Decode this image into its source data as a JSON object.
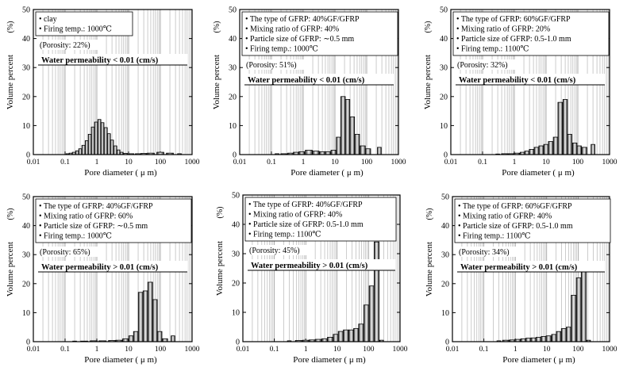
{
  "chart_data": [
    {
      "type": "bar",
      "panel": "top-left",
      "ylabel": "Volume percent",
      "yunit": "(%)",
      "xlabel": "Pore diameter ( μ m)",
      "ylim": [
        0,
        50
      ],
      "yticks": [
        "0",
        "10",
        "20",
        "30",
        "40",
        "50"
      ],
      "xlim": [
        0.01,
        1000
      ],
      "xticks": [
        "0.01",
        "0.1",
        "1",
        "10",
        "100",
        "1000"
      ],
      "legend": [
        "• clay",
        "• Firing temp.: 1000℃"
      ],
      "porosity": "(Porosity: 22%)",
      "permeability": "Water permeability < 0.01 (cm/s)",
      "x": [
        0.12,
        0.15,
        0.19,
        0.24,
        0.3,
        0.38,
        0.48,
        0.6,
        0.75,
        0.95,
        1.2,
        1.5,
        1.9,
        2.4,
        3.0,
        3.8,
        4.8,
        6.0,
        8.0,
        12,
        20,
        30,
        50,
        100,
        200,
        400
      ],
      "values": [
        0.3,
        0.5,
        0.8,
        1.3,
        2.0,
        3.2,
        4.8,
        7.0,
        9.5,
        11.2,
        12.1,
        11.0,
        9.3,
        7.2,
        5.0,
        3.0,
        1.6,
        0.8,
        0.4,
        0.3,
        0.3,
        0.4,
        0.5,
        0.8,
        0.5,
        0.3
      ]
    },
    {
      "type": "bar",
      "panel": "top-middle",
      "ylabel": "Volume percent",
      "yunit": "(%)",
      "xlabel": "Pore diameter ( μ m)",
      "ylim": [
        0,
        50
      ],
      "yticks": [
        "0",
        "10",
        "20",
        "30",
        "40",
        "50"
      ],
      "xlim": [
        0.01,
        1000
      ],
      "xticks": [
        "0.01",
        "0.1",
        "1",
        "10",
        "100",
        "1000"
      ],
      "legend": [
        "• The type of GFRP: 40%GF/GFRP",
        "• Mixing ratio of GFRP: 40%",
        "• Particle size of GFRP: ∼0.5 mm",
        "• Firing temp.: 1000℃"
      ],
      "porosity": "(Porosity: 51%)",
      "permeability": "Water permeability < 0.01 (cm/s)",
      "x": [
        0.15,
        0.25,
        0.4,
        0.6,
        0.9,
        1.5,
        2.5,
        4,
        6,
        9,
        13,
        18,
        25,
        35,
        50,
        75,
        110,
        250
      ],
      "values": [
        0.3,
        0.3,
        0.5,
        0.8,
        1.0,
        1.5,
        1.2,
        1.0,
        1.0,
        1.5,
        6.0,
        20.0,
        19.0,
        13.0,
        7.0,
        3.0,
        2.0,
        2.5
      ]
    },
    {
      "type": "bar",
      "panel": "top-right",
      "ylabel": "Volume percent",
      "yunit": "(%)",
      "xlabel": "Pore diameter ( μ m)",
      "ylim": [
        0,
        50
      ],
      "yticks": [
        "0",
        "10",
        "20",
        "30",
        "40",
        "50"
      ],
      "xlim": [
        0.01,
        1000
      ],
      "xticks": [
        "0.01",
        "0.1",
        "1",
        "10",
        "100",
        "1000"
      ],
      "legend": [
        "• The type of GFRP: 60%GF/GFRP",
        "• Mixing ratio of GFRP: 20%",
        "• Particle size of GFRP: 0.5-1.0 mm",
        "• Firing temp.: 1100℃"
      ],
      "porosity": "(Porosity: 32%)",
      "permeability": "Water permeability < 0.01 (cm/s)",
      "x": [
        0.3,
        0.5,
        0.8,
        1.2,
        1.8,
        2.5,
        3.5,
        5,
        7,
        10,
        14,
        20,
        28,
        40,
        55,
        80,
        110,
        160,
        300
      ],
      "values": [
        0.2,
        0.3,
        0.3,
        0.5,
        0.8,
        1.2,
        1.8,
        2.5,
        3.0,
        3.5,
        4.5,
        6.0,
        18.0,
        19.0,
        7.0,
        4.0,
        3.0,
        2.5,
        3.5
      ]
    },
    {
      "type": "bar",
      "panel": "bottom-left",
      "ylabel": "Volume percent",
      "yunit": "(%)",
      "xlabel": "Pore diameter ( μ m)",
      "ylim": [
        0,
        50
      ],
      "yticks": [
        "0",
        "10",
        "20",
        "30",
        "40",
        "50"
      ],
      "xlim": [
        0.01,
        1000
      ],
      "xticks": [
        "0.01",
        "0.1",
        "1",
        "10",
        "100",
        "1000"
      ],
      "legend": [
        "• The type of GFRP: 40%GF/GFRP",
        "• Mixing ratio of GFRP: 60%",
        "• Particle size of GFRP: ∼0.5 mm",
        "• Firing temp.: 1000℃"
      ],
      "porosity": "(Porosity: 65%)",
      "permeability": "Water permeability > 0.01 (cm/s)",
      "x": [
        0.2,
        0.4,
        0.8,
        1.5,
        3,
        5,
        8,
        12,
        17,
        24,
        34,
        48,
        68,
        95,
        140,
        250
      ],
      "values": [
        0.2,
        0.2,
        0.3,
        0.3,
        0.4,
        0.5,
        1.0,
        2.0,
        3.5,
        17.0,
        17.5,
        20.5,
        14.5,
        3.5,
        1.0,
        2.0
      ]
    },
    {
      "type": "bar",
      "panel": "bottom-middle",
      "ylabel": "Volume percent",
      "yunit": "(%)",
      "xlabel": "Pore diameter ( μ m)",
      "ylim": [
        0,
        50
      ],
      "yticks": [
        "0",
        "10",
        "20",
        "30",
        "40",
        "50"
      ],
      "xlim": [
        0.01,
        1000
      ],
      "xticks": [
        "0.01",
        "0.1",
        "1",
        "10",
        "100",
        "1000"
      ],
      "legend": [
        "• The type of GFRP: 40%GF/GFRP",
        "• Mixing ratio of GFRP: 40%",
        "• Particle size of GFRP: 0.5-1.0 mm",
        "• Firing temp.: 1100℃"
      ],
      "porosity": "(Porosity: 45%)",
      "permeability": "Water permeability > 0.01 (cm/s)",
      "x": [
        0.3,
        0.6,
        1.0,
        1.6,
        2.5,
        4,
        6,
        9,
        13,
        19,
        28,
        40,
        58,
        85,
        125,
        180,
        260
      ],
      "values": [
        0.3,
        0.4,
        0.5,
        0.6,
        0.8,
        1.0,
        1.5,
        2.5,
        3.5,
        4.0,
        4.0,
        4.5,
        6.0,
        12.5,
        19.0,
        34.0,
        0.5
      ]
    },
    {
      "type": "bar",
      "panel": "bottom-right",
      "ylabel": "Volume percent",
      "yunit": "(%)",
      "xlabel": "Pore diameter ( μ m)",
      "ylim": [
        0,
        50
      ],
      "yticks": [
        "0",
        "10",
        "20",
        "30",
        "40",
        "50"
      ],
      "xlim": [
        0.01,
        1000
      ],
      "xticks": [
        "0.01",
        "0.1",
        "1",
        "10",
        "100",
        "1000"
      ],
      "legend": [
        "• The type of GFRP: 60%GF/GFRP",
        "• Mixing ratio of GFRP: 40%",
        "• Particle size of GFRP: 0.5-1.0 mm",
        "• Firing temp.: 1100℃"
      ],
      "porosity": "(Porosity: 34%)",
      "permeability": "Water permeability > 0.01 (cm/s)",
      "x": [
        0.3,
        0.5,
        0.8,
        1.2,
        1.8,
        2.6,
        3.8,
        5.5,
        8,
        11.5,
        17,
        24,
        35,
        50,
        72,
        105,
        150,
        215
      ],
      "values": [
        0.3,
        0.5,
        0.6,
        0.8,
        1.0,
        1.2,
        1.3,
        1.5,
        1.8,
        2.0,
        2.5,
        3.5,
        4.5,
        5.0,
        16.0,
        22.0,
        27.0,
        0.5
      ]
    }
  ]
}
